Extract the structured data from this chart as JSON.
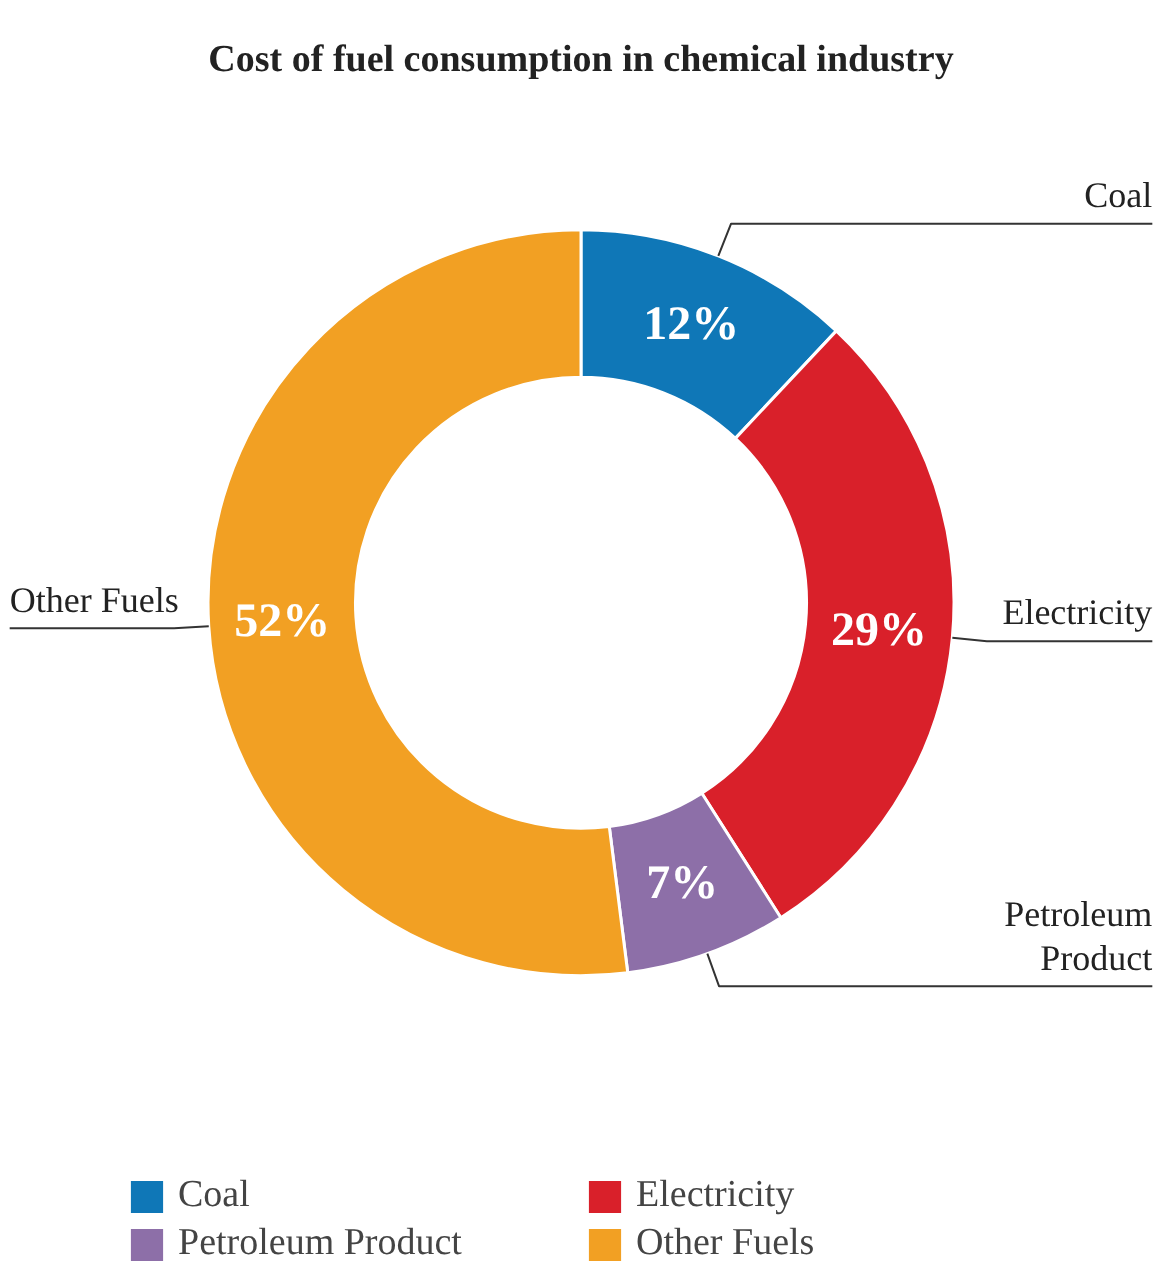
{
  "chart_data": {
    "type": "donut",
    "title": "Cost of fuel consumption in chemical industry",
    "categories": [
      "Coal",
      "Electricity",
      "Petroleum\nProduct",
      "Other Fuels"
    ],
    "values": [
      12,
      29,
      7,
      52
    ],
    "colors": [
      "#0f77b7",
      "#d9202a",
      "#8d6fa8",
      "#f2a023"
    ],
    "value_labels": [
      "12%",
      "29%",
      "7%",
      "52%"
    ],
    "legend": "bottom"
  }
}
